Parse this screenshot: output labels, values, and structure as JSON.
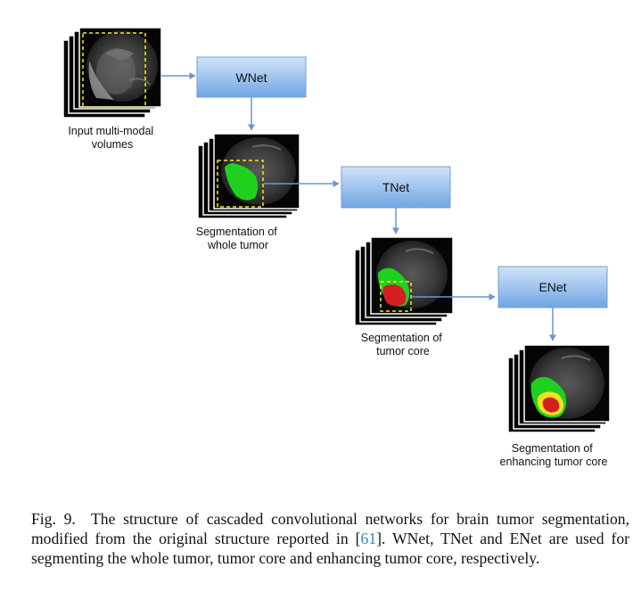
{
  "figure": {
    "boxes": {
      "wnet": "WNet",
      "tnet": "TNet",
      "enet": "ENet"
    },
    "labels": {
      "input": [
        "Input multi-modal",
        "volumes"
      ],
      "whole_tumor": [
        "Segmentation of",
        "whole tumor"
      ],
      "tumor_core": [
        "Segmentation of",
        "tumor core"
      ],
      "enhancing_core": [
        "Segmentation of",
        "enhancing tumor core"
      ]
    },
    "colors": {
      "box_fill_top": "#bcd6f2",
      "box_fill_bottom": "#6fa7e3",
      "box_stroke": "#6e95c8",
      "arrow": "#6a97cf",
      "bbox_dash": "#f2ec1c",
      "whole_tumor": "#1fd11f",
      "tumor_core": "#d42020",
      "enhancing": "#f0e020"
    }
  },
  "caption": {
    "prefix": "Fig. 9.  The structure of cascaded convolutional networks for brain tumor segmentation, modified from the original structure reported in [",
    "ref": "61",
    "suffix": "]. WNet, TNet and ENet are used for segmenting the whole tumor, tumor core and enhancing tumor core, respectively."
  }
}
